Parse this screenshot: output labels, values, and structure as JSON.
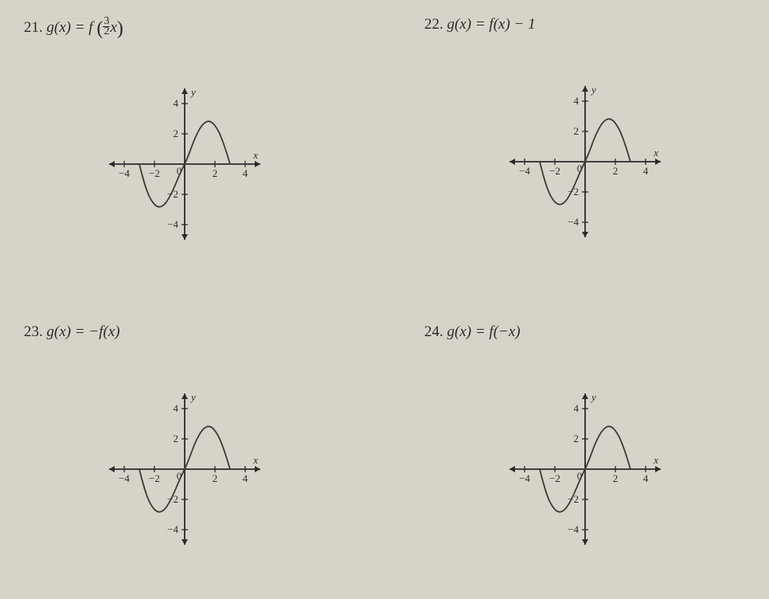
{
  "background_color": "#d8d3c8",
  "text_color": "#2a2a2a",
  "problems": {
    "p21": {
      "number": "21.",
      "lhs": "g(x) = f",
      "frac_top": "3",
      "frac_bot": "2",
      "after_frac_1": "x",
      "lparen": "(",
      "rparen": ")"
    },
    "p22": {
      "number": "22.",
      "expr": "g(x) = f(x) − 1"
    },
    "p23": {
      "number": "23.",
      "expr": "g(x) = −f(x)"
    },
    "p24": {
      "number": "24.",
      "expr": "g(x) = f(−x)"
    }
  },
  "graph": {
    "xlim": [
      -5,
      5
    ],
    "ylim": [
      -5,
      5
    ],
    "x_ticks": [
      -4,
      -2,
      2,
      4
    ],
    "y_ticks": [
      -4,
      -2,
      2,
      4
    ],
    "x_tick_labels": [
      "−4",
      "−2",
      "2",
      "4"
    ],
    "y_tick_labels": [
      "−4",
      "−2",
      "2",
      "4"
    ],
    "origin_label": "0",
    "x_axis_label": "x",
    "y_axis_label": "y",
    "axis_color": "#2a2a2a",
    "curve_color": "#3a3a3a",
    "curve_width": 1.8,
    "svg_size": 210,
    "curves": {
      "base": [
        [
          -3,
          0
        ],
        [
          -2.7,
          -1.2
        ],
        [
          -2.3,
          -2.3
        ],
        [
          -1.8,
          -2.9
        ],
        [
          -1.3,
          -2.7
        ],
        [
          -0.8,
          -1.8
        ],
        [
          -0.3,
          -0.6
        ],
        [
          0,
          0
        ],
        [
          0.3,
          0.7
        ],
        [
          0.7,
          1.8
        ],
        [
          1.2,
          2.7
        ],
        [
          1.7,
          2.9
        ],
        [
          2.2,
          2.3
        ],
        [
          2.6,
          1.3
        ],
        [
          3,
          0
        ]
      ]
    }
  }
}
